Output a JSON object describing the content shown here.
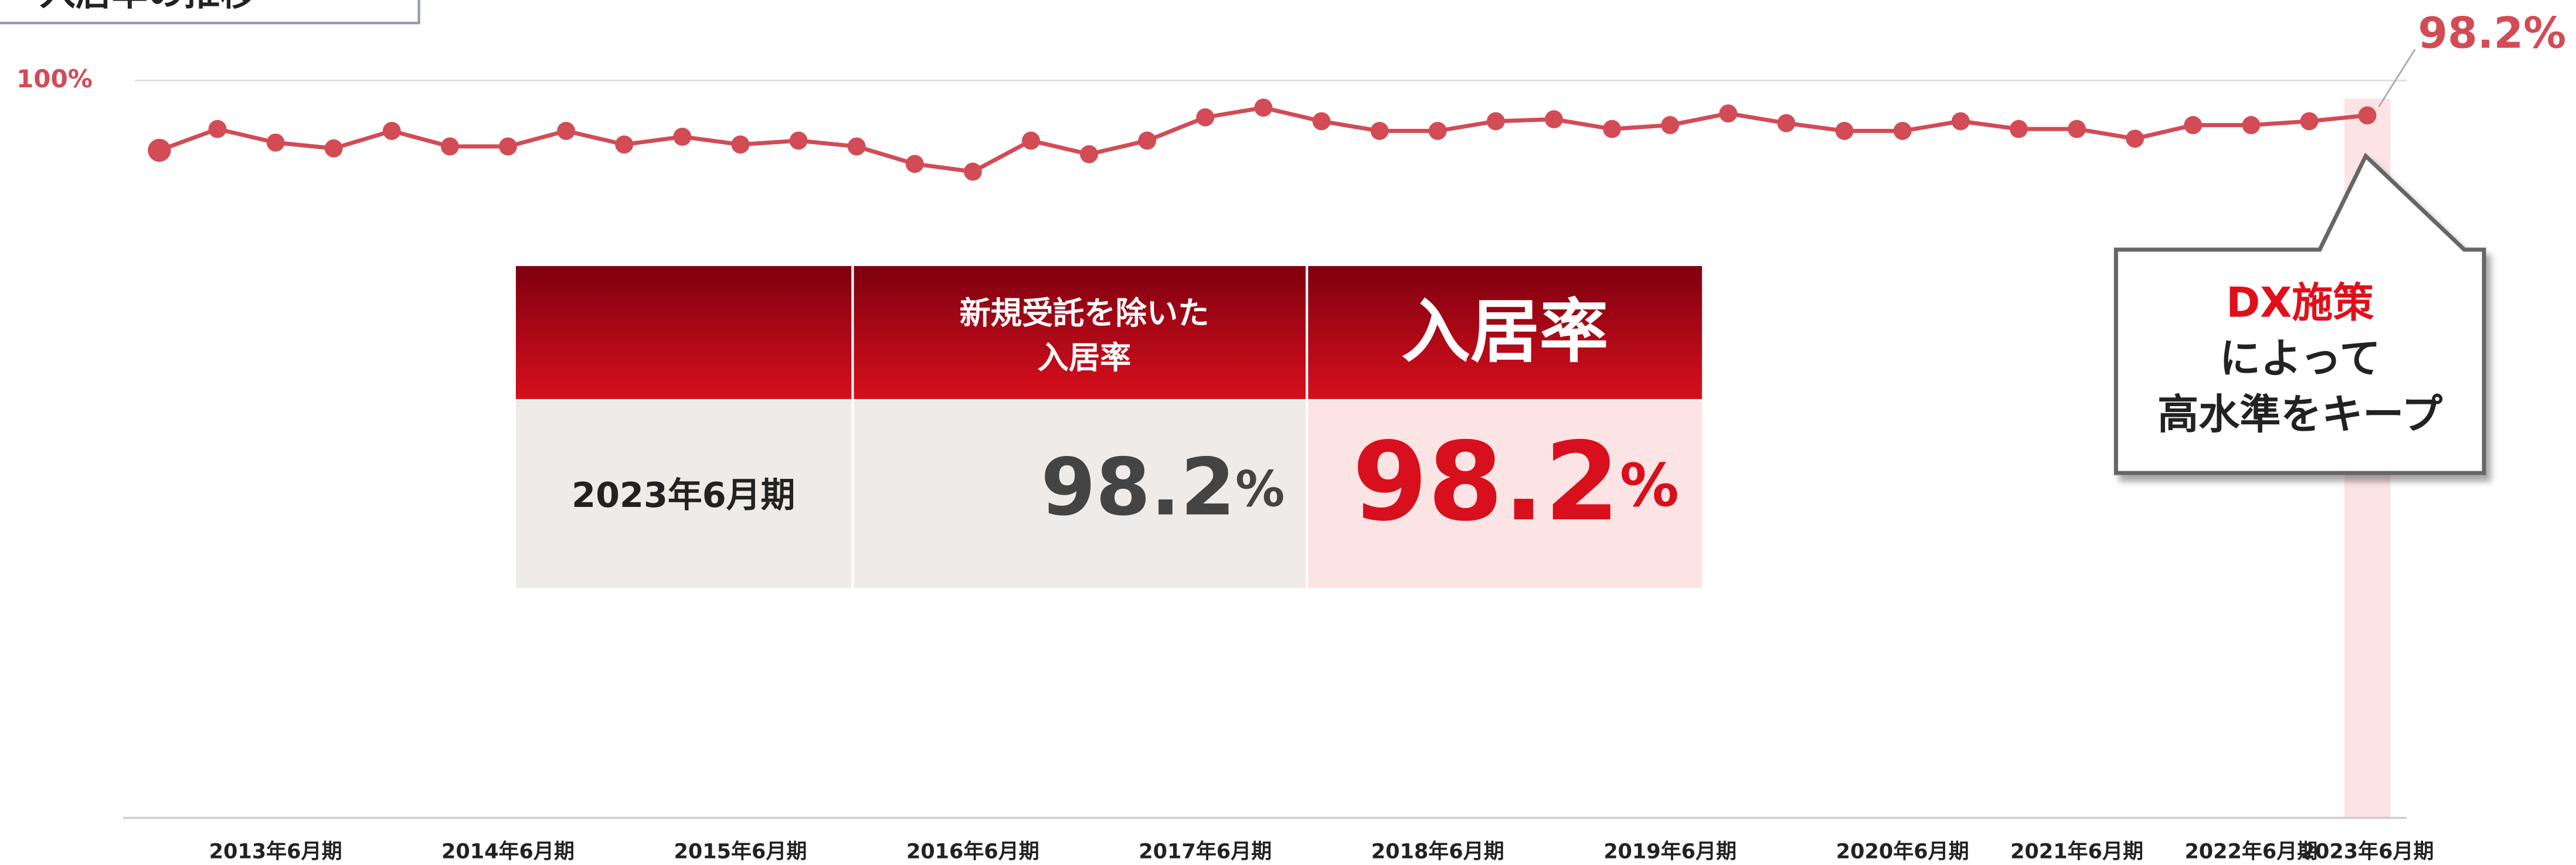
{
  "chart_data": {
    "type": "line",
    "title": "入居率の推移",
    "categories": [
      null,
      null,
      "2013年6月期",
      null,
      null,
      null,
      "2014年6月期",
      null,
      null,
      null,
      "2015年6月期",
      null,
      null,
      null,
      "2016年6月期",
      null,
      null,
      null,
      "2017年6月期",
      null,
      null,
      null,
      "2018年6月期",
      null,
      null,
      null,
      "2019年6月期",
      null,
      null,
      null,
      "2020年6月期",
      null,
      null,
      "2021年6月期",
      null,
      null,
      "2022年6月期",
      null,
      "2023年6月期"
    ],
    "values": [
      96.4,
      97.5,
      96.8,
      96.5,
      97.4,
      96.6,
      96.6,
      97.4,
      96.7,
      97.1,
      96.7,
      96.9,
      96.6,
      95.7,
      95.3,
      96.9,
      96.2,
      96.9,
      98.1,
      98.6,
      97.9,
      97.4,
      97.4,
      97.9,
      98.0,
      97.5,
      97.7,
      98.3,
      97.8,
      97.4,
      97.4,
      97.9,
      97.5,
      97.5,
      97.0,
      97.7,
      97.7,
      97.9,
      98.2
    ],
    "value_labels": [
      null,
      null,
      null,
      null,
      null,
      null,
      null,
      null,
      null,
      null,
      null,
      null,
      null,
      null,
      null,
      null,
      null,
      null,
      null,
      null,
      null,
      null,
      null,
      null,
      null,
      null,
      null,
      null,
      null,
      null,
      null,
      null,
      null,
      null,
      null,
      null,
      null,
      null,
      "98.2%"
    ],
    "color": "#d24b55",
    "ylim": [
      62,
      100
    ],
    "yticks": [
      {
        "value": 100,
        "label": "100%"
      }
    ],
    "grid": true,
    "callout": {
      "highlight": "DX施策",
      "lines": [
        "によって",
        "高水準をキープ"
      ]
    }
  },
  "table": {
    "headers": [
      [
        "新規受託を除いた",
        "入居率"
      ],
      [
        "入居率"
      ]
    ],
    "rows": [
      {
        "label": "2023年6月期",
        "cells": [
          {
            "number": "98.2",
            "unit": "%"
          },
          {
            "number": "98.2",
            "unit": "%"
          }
        ]
      }
    ]
  }
}
